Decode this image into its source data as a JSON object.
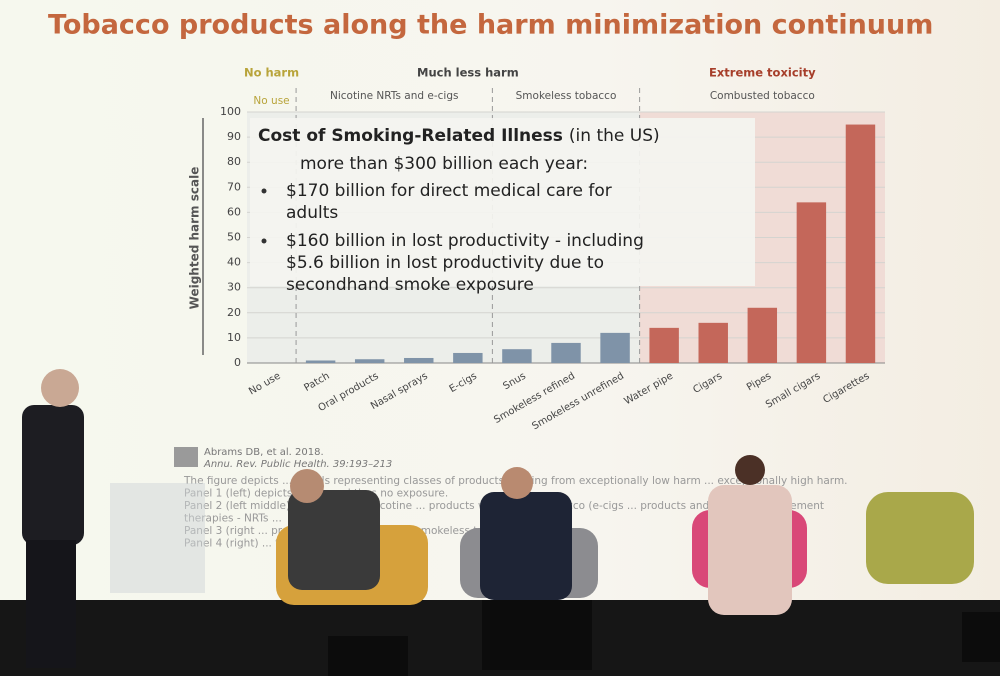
{
  "chart_data": {
    "type": "bar",
    "title": "Tobacco products along the harm minimization continuum",
    "y_label": "Weighted harm scale",
    "harm_groups": [
      "No harm",
      "Much less harm",
      "Extreme toxicity"
    ],
    "product_groups": [
      "No use",
      "Nicotine NRTs and e-cigs",
      "Smokeless tobacco",
      "Combusted tobacco"
    ],
    "categories": [
      "No use",
      "Patch",
      "Oral products",
      "Nasal sprays",
      "E-cigs",
      "Snus",
      "Smokeless refined",
      "Smokeless unrefined",
      "Water pipe",
      "Cigars",
      "Pipes",
      "Small cigars",
      "Cigarettes"
    ],
    "values": [
      0,
      1,
      1.5,
      2,
      4,
      5.5,
      8,
      12,
      14,
      16,
      22,
      64,
      95
    ],
    "colors": [
      "#7f93a8",
      "#7f93a8",
      "#7f93a8",
      "#7f93a8",
      "#7f93a8",
      "#7f93a8",
      "#7f93a8",
      "#7f93a8",
      "#c4675a",
      "#c4675a",
      "#c4675a",
      "#c4675a",
      "#c4675a"
    ],
    "ylim": [
      0,
      100
    ],
    "yticks": [
      0,
      10,
      20,
      30,
      40,
      50,
      60,
      70,
      80,
      90,
      100
    ],
    "grid": true,
    "overlay": {
      "title": "Cost of Smoking-Related Illness",
      "title_suffix": "(in the US)",
      "lines": [
        "more than $300 billion each year:"
      ],
      "bullets": [
        "$170 billion for direct medical care for adults",
        "$160 billion in lost productivity - including $5.6 billion in lost productivity due to secondhand smoke exposure"
      ]
    },
    "citation": [
      "Abrams DB, et al. 2018.",
      "Annu. Rev. Public Health. 39:193–213"
    ],
    "caption": [
      "The figure depicts ... panels representing classes of products ranging from exceptionally low harm ... exceptionally high harm.",
      "Panel 1 (left) depicts ... use and thus no exposure.",
      "Panel 2 (left middle) ... the class of nicotine ... products without any tobacco (e-cigs ... products and nicotine replacement",
      "therapies - NRTs ...",
      "Panel 3 (right ... products containing non ... smokeless tobacco.",
      "Panel 4 (right) ... tobacco."
    ]
  }
}
